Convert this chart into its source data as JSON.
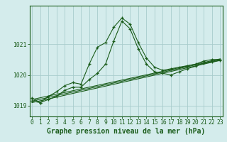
{
  "title": "Graphe pression niveau de la mer (hPa)",
  "bg_color": "#d4ecec",
  "grid_color": "#a8cccc",
  "line_color": "#1a5c1a",
  "x_values": [
    0,
    1,
    2,
    3,
    4,
    5,
    6,
    7,
    8,
    9,
    10,
    11,
    12,
    13,
    14,
    15,
    16,
    17,
    18,
    19,
    20,
    21,
    22,
    23
  ],
  "curve1": [
    1019.25,
    1019.1,
    1019.3,
    1019.45,
    1019.65,
    1019.75,
    1019.7,
    1020.35,
    1020.9,
    1021.05,
    1021.55,
    1021.85,
    1021.65,
    1021.05,
    1020.55,
    1020.25,
    1020.15,
    1020.2,
    1020.25,
    1020.3,
    1020.35,
    1020.45,
    1020.5,
    1020.5
  ],
  "curve2": [
    1019.15,
    1019.1,
    1019.2,
    1019.3,
    1019.5,
    1019.6,
    1019.6,
    1019.85,
    1020.05,
    1020.35,
    1021.1,
    1021.75,
    1021.5,
    1020.85,
    1020.35,
    1020.1,
    1020.05,
    1020.0,
    1020.1,
    1020.2,
    1020.28,
    1020.38,
    1020.42,
    1020.48
  ],
  "line1": [
    [
      0,
      1019.2
    ],
    [
      23,
      1020.52
    ]
  ],
  "line2": [
    [
      0,
      1019.1
    ],
    [
      23,
      1020.47
    ]
  ],
  "line3": [
    [
      0,
      1019.15
    ],
    [
      23,
      1020.5
    ]
  ],
  "yticks": [
    1019,
    1020,
    1021
  ],
  "ylim": [
    1018.65,
    1022.25
  ],
  "xlim": [
    -0.3,
    23.3
  ],
  "title_fontsize": 7,
  "tick_fontsize": 5.8
}
